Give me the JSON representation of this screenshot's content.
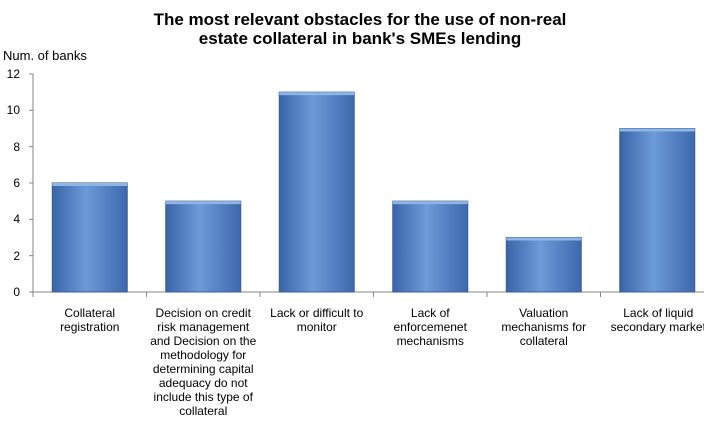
{
  "chart_data": {
    "type": "bar",
    "title_line1": "The most relevant obstacles for the use of non-real",
    "title_line2": "estate collateral in bank's SMEs lending",
    "ylabel": "Num. of banks",
    "xlabel": "",
    "ylim": [
      0,
      12
    ],
    "yticks": [
      "0",
      "2",
      "4",
      "6",
      "8",
      "10",
      "12"
    ],
    "categories": [
      "Collateral registration",
      "Decision on credit risk management and Decision on the methodology for determining capital adequacy do not include this type of collateral",
      "Lack or difficult to monitor",
      "Lack of enforcemenet mechanisms",
      "Valuation mechanisms for collateral",
      "Lack of liquid secondary market"
    ],
    "values": [
      6,
      5,
      11,
      5,
      3,
      9
    ],
    "grid": false,
    "legend": "none",
    "bar_color": "#4f81bd"
  }
}
